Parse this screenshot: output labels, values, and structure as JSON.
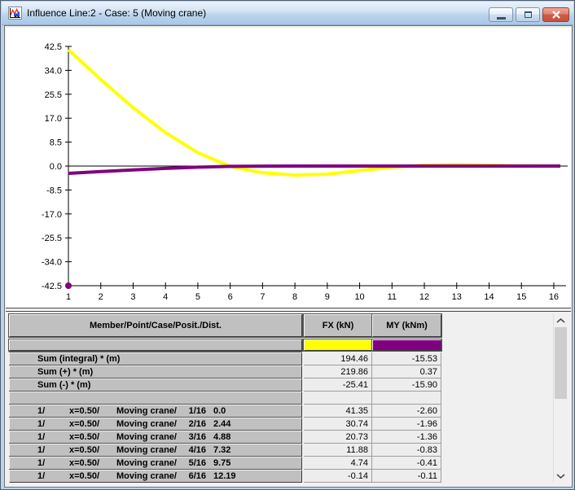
{
  "window": {
    "title": "Influence Line:2 - Case: 5 (Moving crane)",
    "buttons": [
      {
        "name": "minimize-button",
        "icon": "minimize-icon"
      },
      {
        "name": "restore-button",
        "icon": "restore-icon"
      },
      {
        "name": "close-button",
        "icon": "close-icon"
      }
    ]
  },
  "chart_data": {
    "type": "line",
    "title": "",
    "xlabel": "",
    "ylabel": "",
    "grid": false,
    "legend_position": "none",
    "x": [
      1,
      2,
      3,
      4,
      5,
      6,
      7,
      8,
      9,
      10,
      11,
      12,
      13,
      14,
      15,
      16
    ],
    "x_tick_labels": [
      "1",
      "2",
      "3",
      "4",
      "5",
      "6",
      "7",
      "8",
      "9",
      "10",
      "11",
      "12",
      "13",
      "14",
      "15",
      "16"
    ],
    "y_tick_labels": [
      "42.5",
      "34.0",
      "25.5",
      "17.0",
      "8.5",
      "0.0",
      "-8.5",
      "-17.0",
      "-25.5",
      "-34.0",
      "-42.5"
    ],
    "ylim": [
      -42.5,
      42.5
    ],
    "series": [
      {
        "name": "FX (kN)",
        "color": "#ffff00",
        "values": [
          41.35,
          30.74,
          20.73,
          11.88,
          4.74,
          -0.14,
          -2.4,
          -3.2,
          -2.9,
          -1.6,
          -0.4,
          0.3,
          0.5,
          0.3,
          0.05,
          0.0
        ]
      },
      {
        "name": "MY (kNm)",
        "color": "#800080",
        "extend_right": true,
        "values": [
          -2.6,
          -1.96,
          -1.36,
          -0.83,
          -0.41,
          -0.11,
          -0.02,
          0,
          0,
          0,
          0,
          0,
          0,
          0,
          0,
          0
        ]
      }
    ],
    "marker": {
      "x": 1,
      "y": -42.5,
      "color": "#800080"
    }
  },
  "table": {
    "columns": [
      "Member/Point/Case/Posit./Dist.",
      "FX (kN)",
      "MY (kNm)"
    ],
    "legend_colors": {
      "fx": "#ffff00",
      "my": "#800080"
    },
    "summary_rows": [
      {
        "label": "Sum (integral) * (m)",
        "fx": "194.46",
        "my": "-15.53"
      },
      {
        "label": "Sum (+) * (m)",
        "fx": "219.86",
        "my": "0.37"
      },
      {
        "label": "Sum (-) * (m)",
        "fx": "-25.41",
        "my": "-15.90"
      }
    ],
    "data_rows": [
      {
        "member": "1/",
        "position": "x=0.50/",
        "case": "Moving crane/",
        "point": "1/16",
        "dist": "0.0",
        "fx": "41.35",
        "my": "-2.60"
      },
      {
        "member": "1/",
        "position": "x=0.50/",
        "case": "Moving crane/",
        "point": "2/16",
        "dist": "2.44",
        "fx": "30.74",
        "my": "-1.96"
      },
      {
        "member": "1/",
        "position": "x=0.50/",
        "case": "Moving crane/",
        "point": "3/16",
        "dist": "4.88",
        "fx": "20.73",
        "my": "-1.36"
      },
      {
        "member": "1/",
        "position": "x=0.50/",
        "case": "Moving crane/",
        "point": "4/16",
        "dist": "7.32",
        "fx": "11.88",
        "my": "-0.83"
      },
      {
        "member": "1/",
        "position": "x=0.50/",
        "case": "Moving crane/",
        "point": "5/16",
        "dist": "9.75",
        "fx": "4.74",
        "my": "-0.41"
      },
      {
        "member": "1/",
        "position": "x=0.50/",
        "case": "Moving crane/",
        "point": "6/16",
        "dist": "12.19",
        "fx": "-0.14",
        "my": "-0.11"
      }
    ]
  }
}
